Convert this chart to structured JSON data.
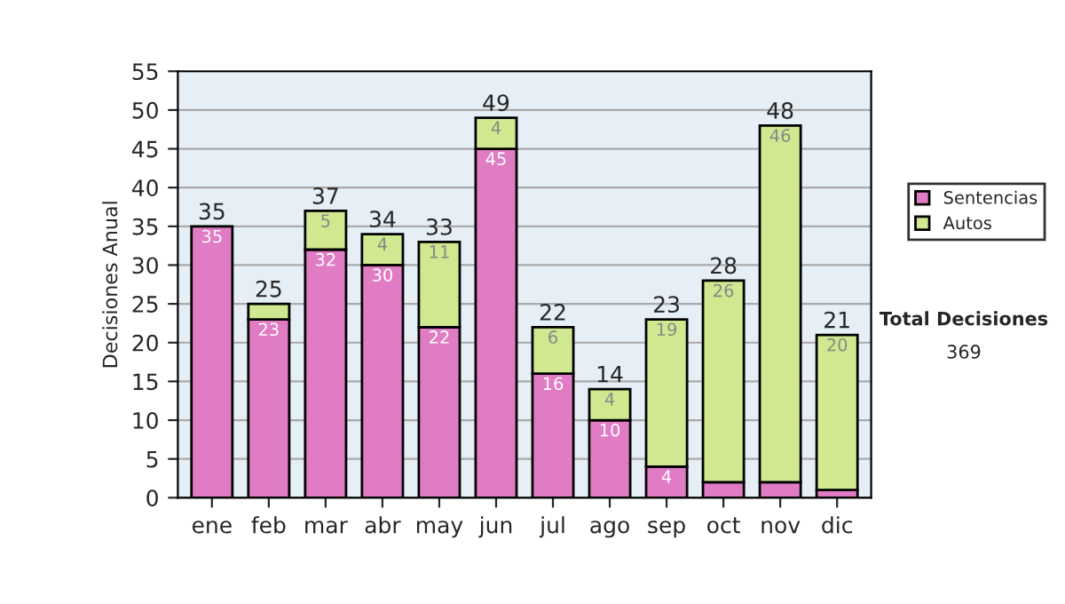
{
  "chart_data": {
    "type": "bar",
    "stacked": true,
    "ylabel": "Decisiones Anual",
    "categories": [
      "ene",
      "feb",
      "mar",
      "abr",
      "may",
      "jun",
      "jul",
      "ago",
      "sep",
      "oct",
      "nov",
      "dic"
    ],
    "series": [
      {
        "name": "Sentencias",
        "color": "#e07cc4",
        "values": [
          35,
          23,
          32,
          30,
          22,
          45,
          16,
          10,
          4,
          2,
          2,
          1
        ],
        "value_labels": [
          "35",
          "23",
          "32",
          "30",
          "22",
          "45",
          "16",
          "10",
          "4",
          null,
          null,
          null
        ]
      },
      {
        "name": "Autos",
        "color": "#d0e890",
        "values": [
          null,
          2,
          5,
          4,
          11,
          4,
          6,
          4,
          19,
          26,
          46,
          20
        ],
        "value_labels": [
          null,
          null,
          "5",
          "4",
          "11",
          "4",
          "6",
          "4",
          "19",
          "26",
          "46",
          "20"
        ]
      }
    ],
    "totals": [
      "35",
      "25",
      "37",
      "34",
      "33",
      "49",
      "22",
      "14",
      "23",
      "28",
      "48",
      "21"
    ],
    "ylim": [
      0,
      55
    ],
    "yticks": [
      0,
      5,
      10,
      15,
      20,
      25,
      30,
      35,
      40,
      45,
      50,
      55
    ],
    "grid": "y",
    "legend": "right",
    "annotations": [
      "Total Decisiones",
      "369"
    ]
  }
}
